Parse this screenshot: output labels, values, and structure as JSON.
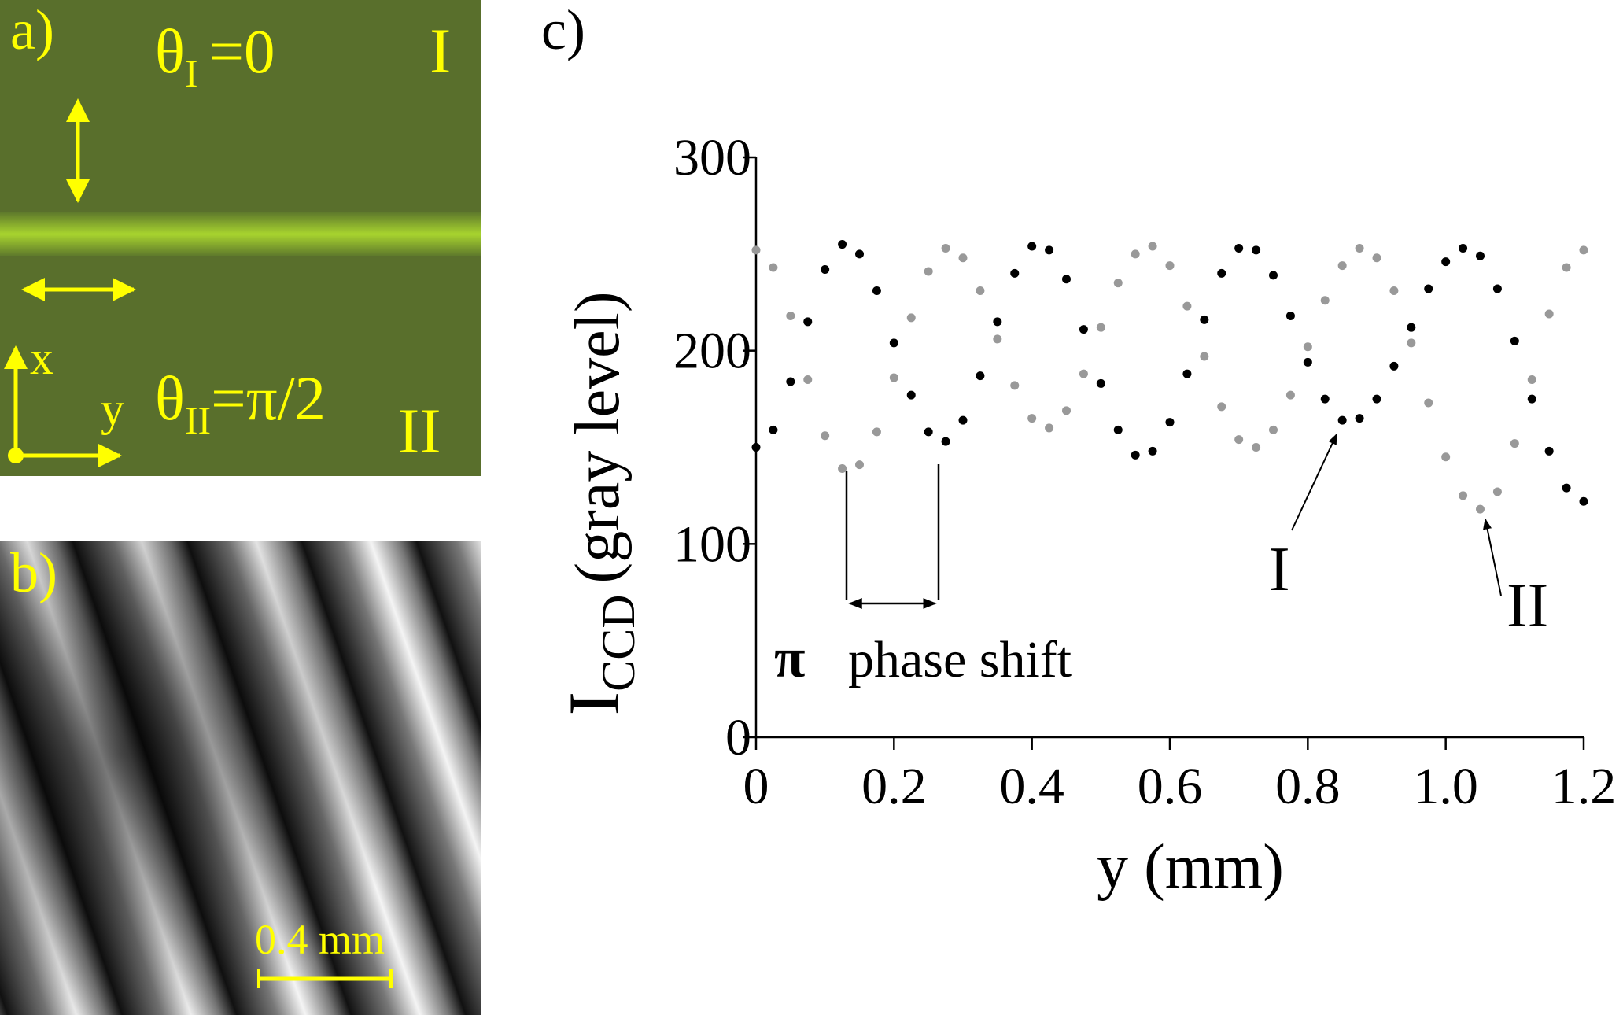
{
  "panel_a": {
    "label": "a)",
    "region_I": {
      "symbol": "θ",
      "subscript": "I",
      "equals": "=0",
      "label": "I"
    },
    "region_II": {
      "symbol": "θ",
      "subscript": "II",
      "equals": "=π/2",
      "label": "II"
    },
    "axis_x": "x",
    "axis_y": "y"
  },
  "panel_b": {
    "label": "b)",
    "scale_bar": "0.4 mm"
  },
  "chart_data": {
    "type": "scatter",
    "panel_label": "c)",
    "xlabel": "y (mm)",
    "ylabel": {
      "main": "I",
      "subscript": "CCD",
      "rest": "(gray level)"
    },
    "annotation": {
      "symbol": "π",
      "text": "phase shift"
    },
    "curve_labels": [
      "I",
      "II"
    ],
    "xlim": [
      0,
      1.2
    ],
    "ylim": [
      0,
      300
    ],
    "xticks": [
      0,
      0.2,
      0.4,
      0.6,
      0.8,
      {
        "value": 1,
        "label": "1.0"
      },
      1.2
    ],
    "yticks": [
      0,
      100,
      200,
      300
    ],
    "x": [
      0,
      0.025,
      0.05,
      0.075,
      0.1,
      0.125,
      0.15,
      0.175,
      0.2,
      0.225,
      0.25,
      0.275,
      0.3,
      0.325,
      0.35,
      0.375,
      0.4,
      0.425,
      0.45,
      0.475,
      0.5,
      0.525,
      0.55,
      0.575,
      0.6,
      0.625,
      0.65,
      0.675,
      0.7,
      0.725,
      0.75,
      0.775,
      0.8,
      0.825,
      0.85,
      0.875,
      0.9,
      0.925,
      0.95,
      0.975,
      1.0,
      1.025,
      1.05,
      1.075,
      1.1,
      1.125,
      1.15,
      1.175,
      1.2
    ],
    "series": [
      {
        "name": "I",
        "color": "#000000",
        "values": [
          150,
          159,
          184,
          215,
          242,
          255,
          250,
          231,
          204,
          177,
          158,
          153,
          164,
          187,
          215,
          240,
          254,
          252,
          237,
          211,
          183,
          159,
          146,
          148,
          163,
          188,
          216,
          240,
          253,
          252,
          239,
          218,
          194,
          175,
          164,
          165,
          175,
          192,
          212,
          232,
          246,
          253,
          249,
          232,
          205,
          175,
          148,
          129,
          122
        ]
      },
      {
        "name": "II",
        "color": "#999999",
        "values": [
          252,
          243,
          218,
          185,
          156,
          139,
          141,
          158,
          186,
          217,
          241,
          253,
          248,
          231,
          206,
          182,
          165,
          160,
          169,
          188,
          212,
          235,
          250,
          254,
          244,
          223,
          197,
          171,
          154,
          150,
          159,
          177,
          202,
          226,
          244,
          253,
          248,
          231,
          204,
          173,
          145,
          125,
          118,
          127,
          152,
          185,
          219,
          243,
          252
        ]
      }
    ]
  }
}
